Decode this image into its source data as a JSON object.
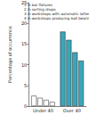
{
  "chart_data": {
    "type": "bar",
    "y_label": "Percentage of occurrence",
    "categories": [
      "Under 40",
      "Over 40"
    ],
    "series": [
      {
        "name": "1 in bar fixtures",
        "values": [
          2.5,
          18
        ],
        "colors": [
          "#ffffff",
          "#3aa6b9"
        ]
      },
      {
        "name": "2 in sorting shops",
        "values": [
          2,
          16
        ],
        "colors": [
          "#ffffff",
          "#3aa6b9"
        ]
      },
      {
        "name": "3 in workshops with automatic lathes",
        "values": [
          1.5,
          13
        ],
        "colors": [
          "#ffffff",
          "#3aa6b9"
        ]
      },
      {
        "name": "4 in workshops producing ball bearings",
        "values": [
          1,
          11
        ],
        "colors": [
          "#ffffff",
          "#3aa6b9"
        ]
      }
    ],
    "ylim": [
      0,
      25
    ],
    "yticks": [
      0,
      5,
      10,
      15,
      20,
      25
    ],
    "grid": false,
    "legend": "upper left"
  }
}
